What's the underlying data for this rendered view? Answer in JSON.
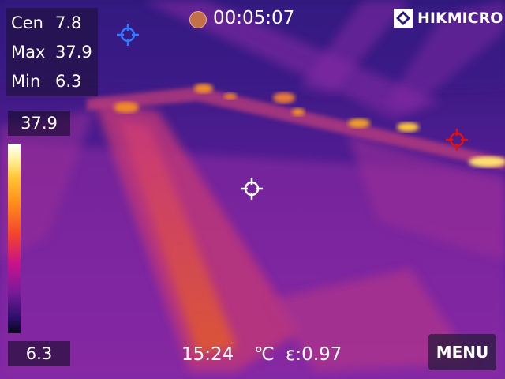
{
  "readout": {
    "center_label": "Cen",
    "center_value": "7.8",
    "max_label": "Max",
    "max_value": "37.9",
    "min_label": "Min",
    "min_value": "6.3"
  },
  "scale": {
    "max": "37.9",
    "min": "6.3"
  },
  "recording": {
    "time": "00:05:07"
  },
  "brand": {
    "name": "HIKMICRO"
  },
  "footer": {
    "clock": "15:24",
    "unit": "℃",
    "emissivity": "ε:0.97"
  },
  "menu": {
    "label": "MENU"
  },
  "colors": {
    "cold_marker": "#2f7bff",
    "hot_marker": "#e01010",
    "center_marker": "#ffffff"
  },
  "icons": [
    "record-dot-icon",
    "hikmicro-logo-icon",
    "crosshair-icon"
  ]
}
